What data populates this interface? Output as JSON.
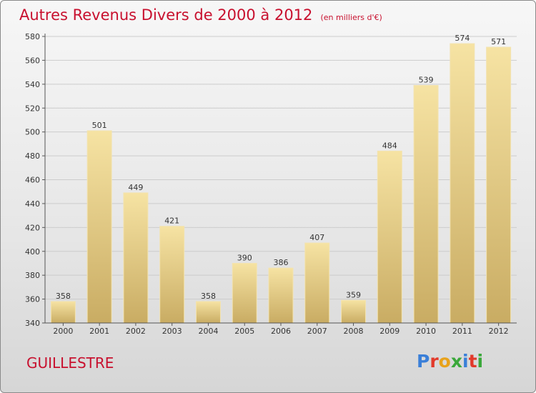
{
  "title": "Autres Revenus Divers de 2000 à 2012",
  "subtitle": "(en milliers d'€)",
  "commune": "GUILLESTRE",
  "logo": {
    "text": "Proxiti",
    "letter_colors": [
      "#3a7fd8",
      "#e23a2b",
      "#e8a21a",
      "#3aa83a",
      "#3a7fd8",
      "#e23a2b",
      "#3aa83a"
    ]
  },
  "colors": {
    "title": "#c8102e",
    "bar_light": "#f6e3a3",
    "bar_dark": "#c9ac63",
    "grid": "#cccccc"
  },
  "chart_data": {
    "type": "bar",
    "categories": [
      "2000",
      "2001",
      "2002",
      "2003",
      "2004",
      "2005",
      "2006",
      "2007",
      "2008",
      "2009",
      "2010",
      "2011",
      "2012"
    ],
    "values": [
      358,
      501,
      449,
      421,
      358,
      390,
      386,
      407,
      359,
      484,
      539,
      574,
      571
    ],
    "ylim": [
      340,
      580
    ],
    "yticks": [
      340,
      360,
      380,
      400,
      420,
      440,
      460,
      480,
      500,
      520,
      540,
      560,
      580
    ],
    "grid": true,
    "xlabel": "",
    "ylabel": ""
  }
}
